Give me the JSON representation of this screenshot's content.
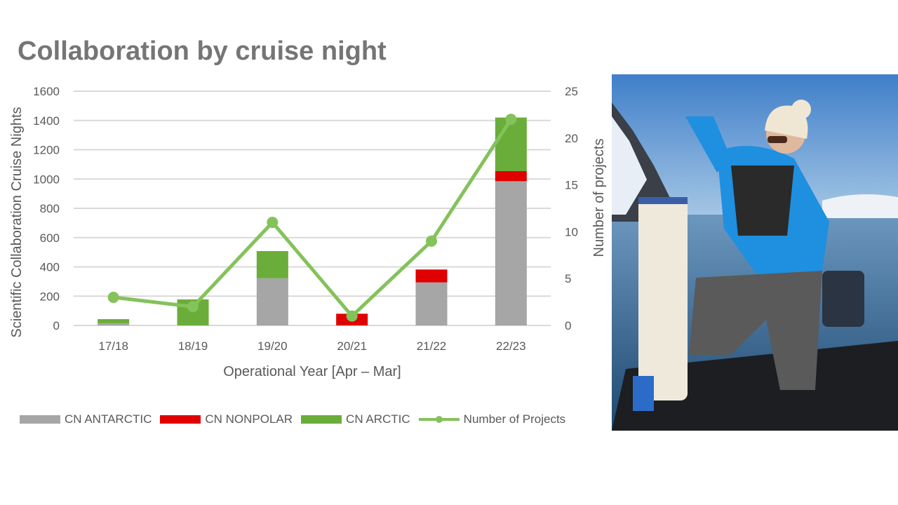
{
  "title": "Collaboration by cruise night",
  "colors": {
    "antarctic": "#a6a6a6",
    "nonpolar": "#e00000",
    "arctic": "#6aad3a",
    "projects": "#84c25a",
    "grid": "#d9d9d9",
    "text": "#595959"
  },
  "chart_data": {
    "type": "bar",
    "stacked": true,
    "categories": [
      "17/18",
      "18/19",
      "19/20",
      "20/21",
      "21/22",
      "22/23"
    ],
    "series": [
      {
        "name": "CN ANTARCTIC",
        "values": [
          15,
          0,
          322,
          0,
          294,
          985
        ]
      },
      {
        "name": "CN NONPOLAR",
        "values": [
          0,
          0,
          0,
          80,
          88,
          69
        ]
      },
      {
        "name": "CN ARCTIC",
        "values": [
          28,
          178,
          186,
          0,
          0,
          366
        ]
      }
    ],
    "line_series": {
      "name": "Number of Projects",
      "axis": "secondary",
      "values": [
        3,
        2,
        11,
        1,
        9,
        22
      ]
    },
    "xlabel": "Operational Year [Apr – Mar]",
    "ylabel": "Scientific Collaboration Cruise Nights",
    "y2label": "Number of projects",
    "ylim": [
      0,
      1600
    ],
    "yticks": [
      "0",
      "200",
      "400",
      "600",
      "800",
      "1000",
      "1200",
      "1400",
      "1600"
    ],
    "y2lim": [
      0,
      25
    ],
    "y2ticks": [
      "0",
      "5",
      "10",
      "15",
      "20",
      "25"
    ],
    "grid": true,
    "legend": "bottom"
  }
}
